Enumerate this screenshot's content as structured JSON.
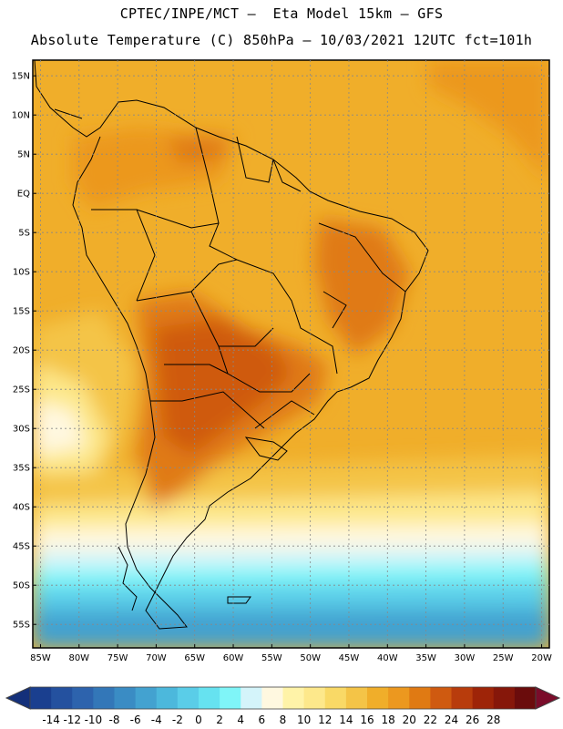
{
  "header": {
    "line1": "CPTEC/INPE/MCT –  Eta Model 15km – GFS",
    "line2": "Absolute Temperature (C) 850hPa – 10/03/2021 12UTC fct=101h"
  },
  "map": {
    "lat_labels": [
      "15N",
      "10N",
      "5N",
      "EQ",
      "5S",
      "10S",
      "15S",
      "20S",
      "25S",
      "30S",
      "35S",
      "40S",
      "45S",
      "50S",
      "55S"
    ],
    "lat_values": [
      15,
      10,
      5,
      0,
      -5,
      -10,
      -15,
      -20,
      -25,
      -30,
      -35,
      -40,
      -45,
      -50,
      -55
    ],
    "lon_labels": [
      "85W",
      "80W",
      "75W",
      "70W",
      "65W",
      "60W",
      "55W",
      "50W",
      "45W",
      "40W",
      "35W",
      "30W",
      "25W",
      "20W"
    ],
    "lon_values": [
      -85,
      -80,
      -75,
      -70,
      -65,
      -60,
      -55,
      -50,
      -45,
      -40,
      -35,
      -30,
      -25,
      -20
    ],
    "lat_range": [
      -58,
      17
    ],
    "lon_range": [
      -86,
      -19
    ]
  },
  "colorbar": {
    "labels": [
      "-14",
      "-12",
      "-10",
      "-8",
      "-6",
      "-4",
      "-2",
      "0",
      "2",
      "4",
      "6",
      "8",
      "10",
      "12",
      "14",
      "16",
      "18",
      "20",
      "22",
      "24",
      "26",
      "28"
    ],
    "colors": [
      "#1a3f8f",
      "#24519f",
      "#2d63ad",
      "#3377b8",
      "#3a8cc4",
      "#43a2d0",
      "#4cb8dc",
      "#5acde8",
      "#66e2f0",
      "#7ff5f8",
      "#d4f4fa",
      "#fff8e0",
      "#fff3a8",
      "#fde88b",
      "#f9d966",
      "#f4c447",
      "#f0ae2a",
      "#ec981f",
      "#e07a13",
      "#cf5a10",
      "#b83c0c",
      "#9e2408",
      "#86170a",
      "#6a0c0c"
    ],
    "left_arrow_color": "#14307a",
    "right_arrow_color": "#7a0c2a"
  }
}
